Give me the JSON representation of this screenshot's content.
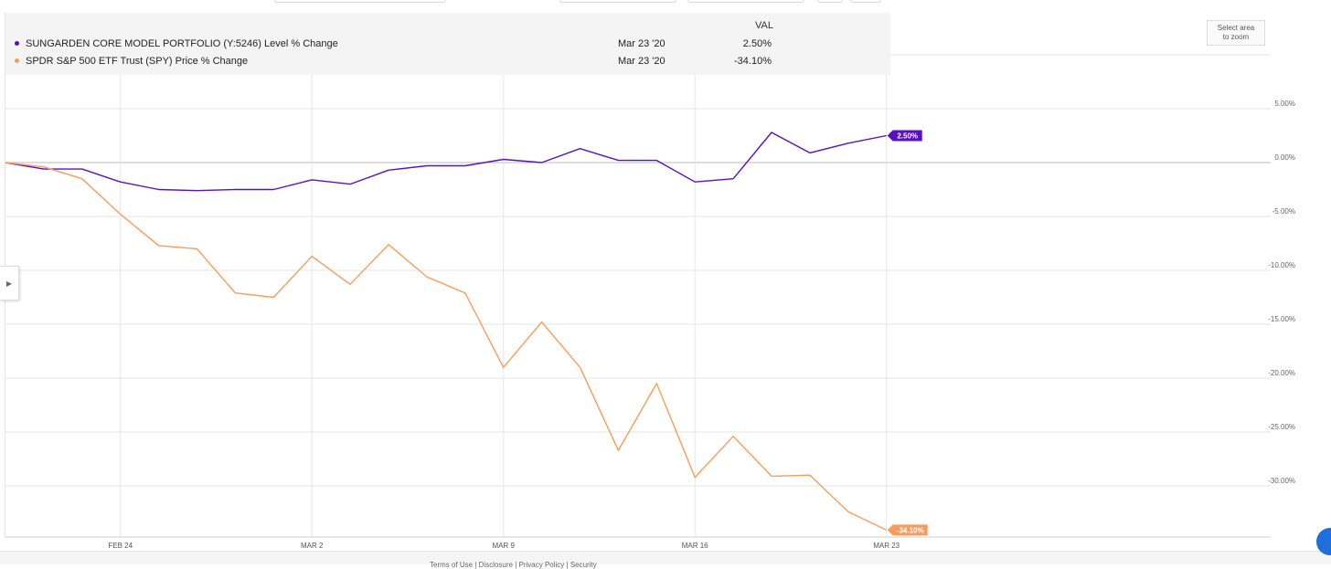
{
  "legend": {
    "header": "VAL",
    "rows": [
      {
        "name": "SUNGARDEN CORE MODEL PORTFOLIO (Y:5246) Level % Change",
        "date": "Mar 23 '20",
        "value": "2.50%"
      },
      {
        "name": "SPDR S&P 500 ETF Trust (SPY) Price % Change",
        "date": "Mar 23 '20",
        "value": "-34.10%"
      }
    ]
  },
  "zoom_button": {
    "line1": "Select area",
    "line2": "to zoom"
  },
  "side_toggle_icon": "chevron-right-icon",
  "footer_links": "Terms of Use  |  Disclosure  |  Privacy Policy  |  Security",
  "colors": {
    "portfolio": "#5b0fc4",
    "spy": "#f79d5c",
    "grid": "#e6e6e6"
  },
  "chart_data": {
    "type": "line",
    "x_ticks": [
      "FEB 24",
      "MAR 2",
      "MAR 9",
      "MAR 16",
      "MAR 23"
    ],
    "y_ticks": [
      "5.00%",
      "0.00%",
      "-5.00%",
      "-10.00%",
      "-15.00%",
      "-20.00%",
      "-25.00%",
      "-30.00%"
    ],
    "y_tick_values": [
      5,
      0,
      -5,
      -10,
      -15,
      -20,
      -25,
      -30
    ],
    "ylim": [
      -34.5,
      5
    ],
    "x": [
      "Feb 19",
      "Feb 20",
      "Feb 21",
      "Feb 24",
      "Feb 25",
      "Feb 26",
      "Feb 27",
      "Feb 28",
      "Mar 2",
      "Mar 3",
      "Mar 4",
      "Mar 5",
      "Mar 6",
      "Mar 9",
      "Mar 10",
      "Mar 11",
      "Mar 12",
      "Mar 13",
      "Mar 16",
      "Mar 17",
      "Mar 18",
      "Mar 19",
      "Mar 20",
      "Mar 23"
    ],
    "series": [
      {
        "name": "SUNGARDEN CORE MODEL PORTFOLIO (Y:5246) Level % Change",
        "end_label": "2.50%",
        "points": [
          [
            "Feb 19",
            0.0
          ],
          [
            "Feb 20",
            -0.6
          ],
          [
            "Feb 21",
            -0.6
          ],
          [
            "Feb 24",
            -1.8
          ],
          [
            "Feb 25",
            -2.5
          ],
          [
            "Feb 26",
            -2.6
          ],
          [
            "Feb 27",
            -2.5
          ],
          [
            "Feb 28",
            -2.5
          ],
          [
            "Mar 2",
            -1.6
          ],
          [
            "Mar 3",
            -2.0
          ],
          [
            "Mar 4",
            -0.7
          ],
          [
            "Mar 5",
            -0.3
          ],
          [
            "Mar 6",
            -0.3
          ],
          [
            "Mar 9",
            0.3
          ],
          [
            "Mar 10",
            0.0
          ],
          [
            "Mar 11",
            1.3
          ],
          [
            "Mar 12",
            0.2
          ],
          [
            "Mar 13",
            0.2
          ],
          [
            "Mar 16",
            -1.8
          ],
          [
            "Mar 17",
            -1.5
          ],
          [
            "Mar 18",
            2.8
          ],
          [
            "Mar 19",
            0.9
          ],
          [
            "Mar 20",
            1.8
          ],
          [
            "Mar 23",
            2.5
          ]
        ]
      },
      {
        "name": "SPDR S&P 500 ETF Trust (SPY) Price % Change",
        "end_label": "-34.10%",
        "points": [
          [
            "Feb 19",
            0.0
          ],
          [
            "Feb 20",
            -0.4
          ],
          [
            "Feb 21",
            -1.5
          ],
          [
            "Feb 24",
            -4.8
          ],
          [
            "Feb 25",
            -7.7
          ],
          [
            "Feb 26",
            -8.0
          ],
          [
            "Feb 27",
            -12.1
          ],
          [
            "Feb 28",
            -12.5
          ],
          [
            "Mar 2",
            -8.7
          ],
          [
            "Mar 3",
            -11.3
          ],
          [
            "Mar 4",
            -7.6
          ],
          [
            "Mar 5",
            -10.6
          ],
          [
            "Mar 6",
            -12.1
          ],
          [
            "Mar 9",
            -19.0
          ],
          [
            "Mar 10",
            -14.8
          ],
          [
            "Mar 11",
            -19.0
          ],
          [
            "Mar 12",
            -26.7
          ],
          [
            "Mar 13",
            -20.5
          ],
          [
            "Mar 16",
            -29.2
          ],
          [
            "Mar 17",
            -25.4
          ],
          [
            "Mar 18",
            -29.1
          ],
          [
            "Mar 19",
            -29.0
          ],
          [
            "Mar 20",
            -32.4
          ],
          [
            "Mar 23",
            -34.1
          ]
        ]
      }
    ]
  }
}
